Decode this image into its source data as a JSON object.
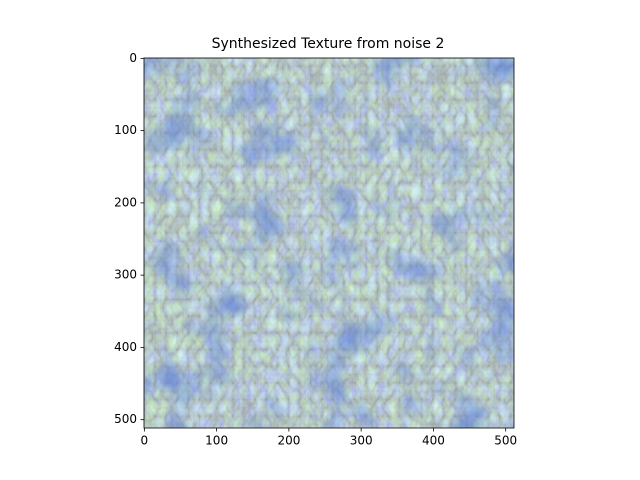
{
  "chart_data": {
    "type": "image",
    "title": "Synthesized Texture from noise 2",
    "xlim": [
      -0.5,
      511.5
    ],
    "ylim": [
      511.5,
      -0.5
    ],
    "xticks": [
      0,
      100,
      200,
      300,
      400,
      500
    ],
    "yticks": [
      0,
      100,
      200,
      300,
      400,
      500
    ]
  }
}
